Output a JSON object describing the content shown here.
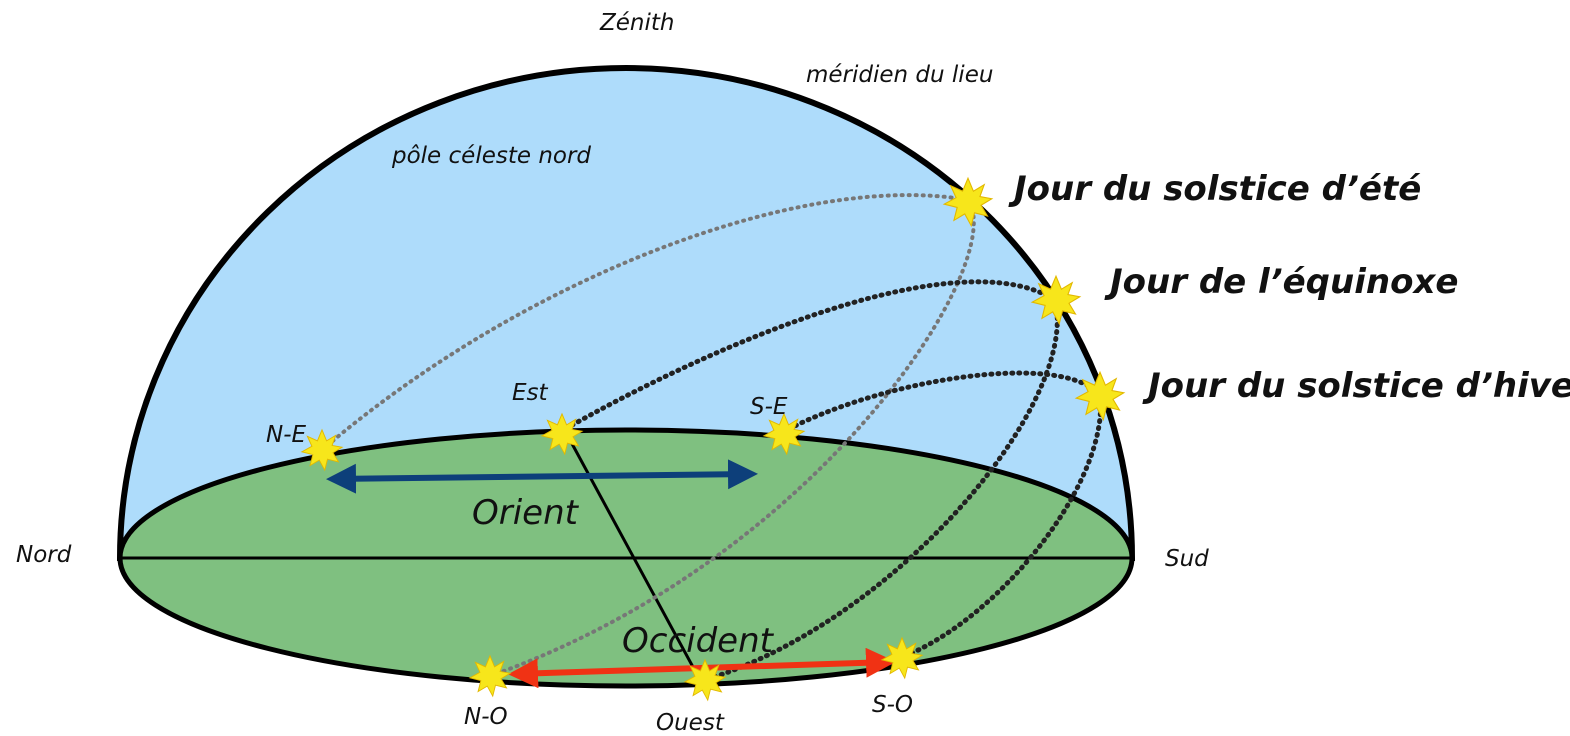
{
  "labels": {
    "zenith": "Zénith",
    "meridian": "méridien du lieu",
    "pole": "pôle céleste nord"
  },
  "sun_paths": [
    {
      "label": "Jour du solstice d’été"
    },
    {
      "label": "Jour de l’équinoxe"
    },
    {
      "label": "Jour du solstice d’hiver"
    }
  ],
  "directions": {
    "north_east": "N-E",
    "east": "Est",
    "south_east": "S-E",
    "north": "Nord",
    "south": "Sud",
    "north_west": "N-O",
    "west": "Ouest",
    "south_west": "S-O"
  },
  "regions": {
    "orient": "Orient",
    "occident": "Occident"
  }
}
